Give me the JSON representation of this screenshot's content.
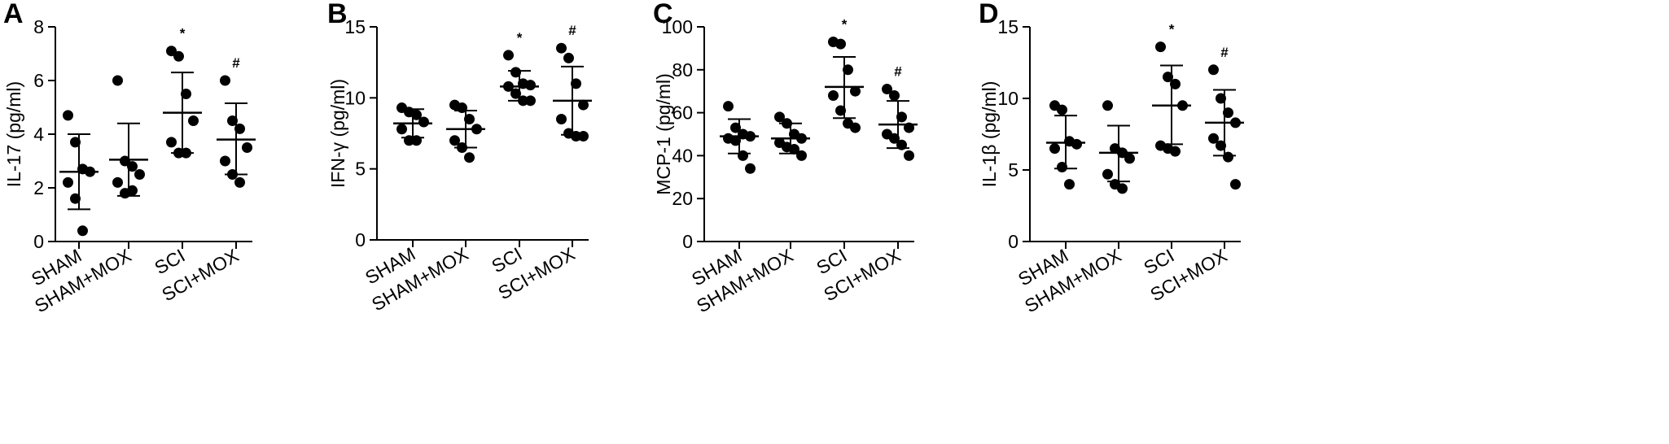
{
  "chart_data": [
    {
      "type": "scatter",
      "panel": "A",
      "ylabel": "IL-17 (pg/ml)",
      "ylim": [
        0,
        8
      ],
      "yticks": [
        0,
        2,
        4,
        6,
        8
      ],
      "categories": [
        "SHAM",
        "SHAM+MOX",
        "SCI",
        "SCI+MOX"
      ],
      "groups": [
        {
          "name": "SHAM",
          "points": [
            4.7,
            3.7,
            2.7,
            2.6,
            2.2,
            1.6,
            0.4
          ],
          "mean": 2.6,
          "sd_low": 1.2,
          "sd_high": 4.0,
          "sig": ""
        },
        {
          "name": "SHAM+MOX",
          "points": [
            6.0,
            3.0,
            2.8,
            2.5,
            2.2,
            1.8,
            1.9
          ],
          "mean": 3.05,
          "sd_low": 1.7,
          "sd_high": 4.4,
          "sig": ""
        },
        {
          "name": "SCI",
          "points": [
            7.1,
            6.9,
            5.5,
            4.5,
            3.7,
            3.3,
            3.3
          ],
          "mean": 4.8,
          "sd_low": 3.3,
          "sd_high": 6.3,
          "sig": "*"
        },
        {
          "name": "SCI+MOX",
          "points": [
            6.0,
            4.5,
            4.2,
            3.5,
            3.0,
            2.5,
            2.2
          ],
          "mean": 3.8,
          "sd_low": 2.5,
          "sd_high": 5.15,
          "sig": "#"
        }
      ]
    },
    {
      "type": "scatter",
      "panel": "B",
      "ylabel": "IFN-γ (pg/ml)",
      "ylim": [
        0,
        15
      ],
      "yticks": [
        0,
        5,
        10,
        15
      ],
      "categories": [
        "SHAM",
        "SHAM+MOX",
        "SCI",
        "SCI+MOX"
      ],
      "groups": [
        {
          "name": "SHAM",
          "points": [
            9.3,
            9.0,
            8.8,
            8.3,
            7.8,
            7.0,
            7.0
          ],
          "mean": 8.2,
          "sd_low": 7.2,
          "sd_high": 9.2,
          "sig": ""
        },
        {
          "name": "SHAM+MOX",
          "points": [
            9.5,
            9.3,
            8.5,
            7.8,
            7.0,
            6.5,
            5.8
          ],
          "mean": 7.8,
          "sd_low": 6.5,
          "sd_high": 9.1,
          "sig": ""
        },
        {
          "name": "SCI",
          "points": [
            13.0,
            11.8,
            11.0,
            10.9,
            10.8,
            10.3,
            9.8,
            9.8
          ],
          "mean": 10.8,
          "sd_low": 9.8,
          "sd_high": 11.9,
          "sig": "*"
        },
        {
          "name": "SCI+MOX",
          "points": [
            13.5,
            12.8,
            11.0,
            9.5,
            8.5,
            7.5,
            7.3,
            7.3
          ],
          "mean": 9.8,
          "sd_low": 7.4,
          "sd_high": 12.2,
          "sig": "#"
        }
      ]
    },
    {
      "type": "scatter",
      "panel": "C",
      "ylabel": "MCP-1 (pg/ml)",
      "ylim": [
        0,
        100
      ],
      "yticks": [
        0,
        20,
        40,
        60,
        80,
        100
      ],
      "categories": [
        "SHAM",
        "SHAM+MOX",
        "SCI",
        "SCI+MOX"
      ],
      "groups": [
        {
          "name": "SHAM",
          "points": [
            63,
            53,
            50,
            49,
            48,
            47,
            40,
            34
          ],
          "mean": 49,
          "sd_low": 41,
          "sd_high": 57,
          "sig": ""
        },
        {
          "name": "SHAM+MOX",
          "points": [
            58,
            55,
            50,
            48,
            46,
            44,
            43,
            40
          ],
          "mean": 48,
          "sd_low": 41,
          "sd_high": 55,
          "sig": ""
        },
        {
          "name": "SCI",
          "points": [
            93,
            92,
            80,
            70,
            68,
            61,
            55,
            53
          ],
          "mean": 72,
          "sd_low": 57.5,
          "sd_high": 86,
          "sig": "*"
        },
        {
          "name": "SCI+MOX",
          "points": [
            71,
            68,
            58,
            53,
            50,
            48,
            45,
            40
          ],
          "mean": 54.5,
          "sd_low": 43.5,
          "sd_high": 65.5,
          "sig": "#"
        }
      ]
    },
    {
      "type": "scatter",
      "panel": "D",
      "ylabel": "IL-1β (pg/ml)",
      "ylim": [
        0,
        15
      ],
      "yticks": [
        0,
        5,
        10,
        15
      ],
      "categories": [
        "SHAM",
        "SHAM+MOX",
        "SCI",
        "SCI+MOX"
      ],
      "groups": [
        {
          "name": "SHAM",
          "points": [
            9.5,
            9.2,
            7.0,
            6.8,
            6.5,
            5.2,
            4.0
          ],
          "mean": 6.9,
          "sd_low": 5.1,
          "sd_high": 8.8,
          "sig": ""
        },
        {
          "name": "SHAM+MOX",
          "points": [
            9.5,
            6.5,
            6.2,
            5.8,
            4.7,
            4.0,
            3.7
          ],
          "mean": 6.2,
          "sd_low": 4.2,
          "sd_high": 8.1,
          "sig": ""
        },
        {
          "name": "SCI",
          "points": [
            13.6,
            11.5,
            11.0,
            9.5,
            6.7,
            6.5,
            6.3
          ],
          "mean": 9.5,
          "sd_low": 6.8,
          "sd_high": 12.3,
          "sig": "*"
        },
        {
          "name": "SCI+MOX",
          "points": [
            12.0,
            10.0,
            9.0,
            8.3,
            7.2,
            6.7,
            5.9,
            4.0
          ],
          "mean": 8.3,
          "sd_low": 6.0,
          "sd_high": 10.6,
          "sig": "#"
        }
      ]
    }
  ]
}
